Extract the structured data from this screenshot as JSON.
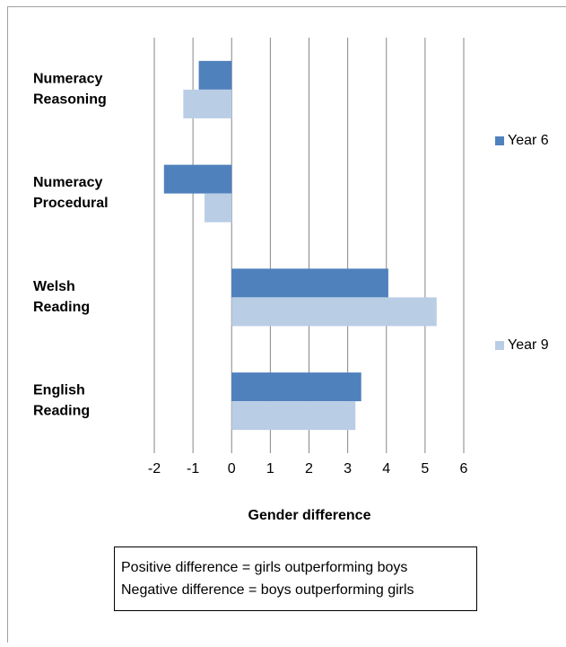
{
  "chart_data": {
    "type": "hbar",
    "categories": [
      "Numeracy Reasoning",
      "Numeracy Procedural",
      "Welsh Reading",
      "English Reading"
    ],
    "series": [
      {
        "name": "Year 6",
        "color": "#4f81bd",
        "values": [
          -0.85,
          -1.75,
          4.05,
          3.35
        ]
      },
      {
        "name": "Year 9",
        "color": "#b9cde5",
        "values": [
          -1.25,
          -0.7,
          5.3,
          3.2
        ]
      }
    ],
    "xlim": [
      -2,
      6
    ],
    "xticks": [
      -2,
      -1,
      0,
      1,
      2,
      3,
      4,
      5,
      6
    ],
    "x_label": "Gender difference",
    "grid": true,
    "legend": "right",
    "notes": [
      "Positive difference = girls outperforming boys",
      "Negative difference = boys outperforming girls"
    ]
  }
}
